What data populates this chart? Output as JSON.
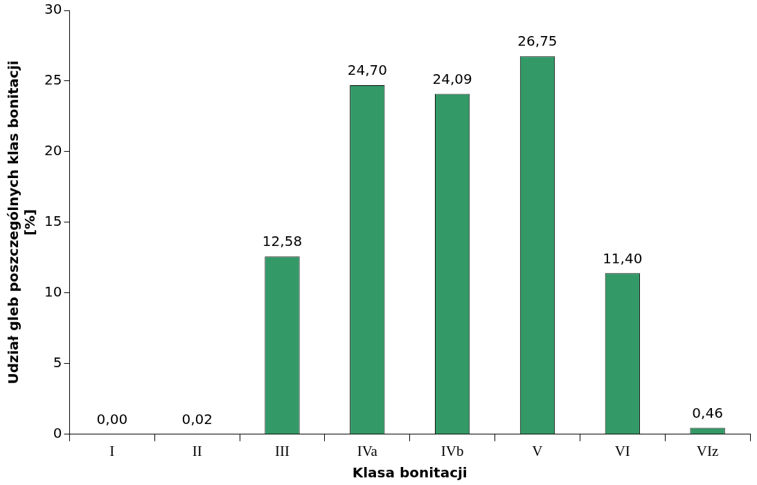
{
  "chart_data": {
    "type": "bar",
    "xlabel": "Klasa bonitacji",
    "ylabel": "Udział gleb poszczególnych klas bonitacji [%]",
    "categories": [
      "I",
      "II",
      "III",
      "IVa",
      "IVb",
      "V",
      "VI",
      "VIz"
    ],
    "values": [
      0.0,
      0.02,
      12.58,
      24.7,
      24.09,
      26.75,
      11.4,
      0.46
    ],
    "value_labels": [
      "0,00",
      "0,02",
      "12,58",
      "24,70",
      "24,09",
      "26,75",
      "11,40",
      "0,46"
    ],
    "color": "#339966",
    "ylim": [
      0,
      30
    ],
    "yticks": [
      0,
      5,
      10,
      15,
      20,
      25,
      30
    ],
    "grid": false,
    "legend": false
  }
}
